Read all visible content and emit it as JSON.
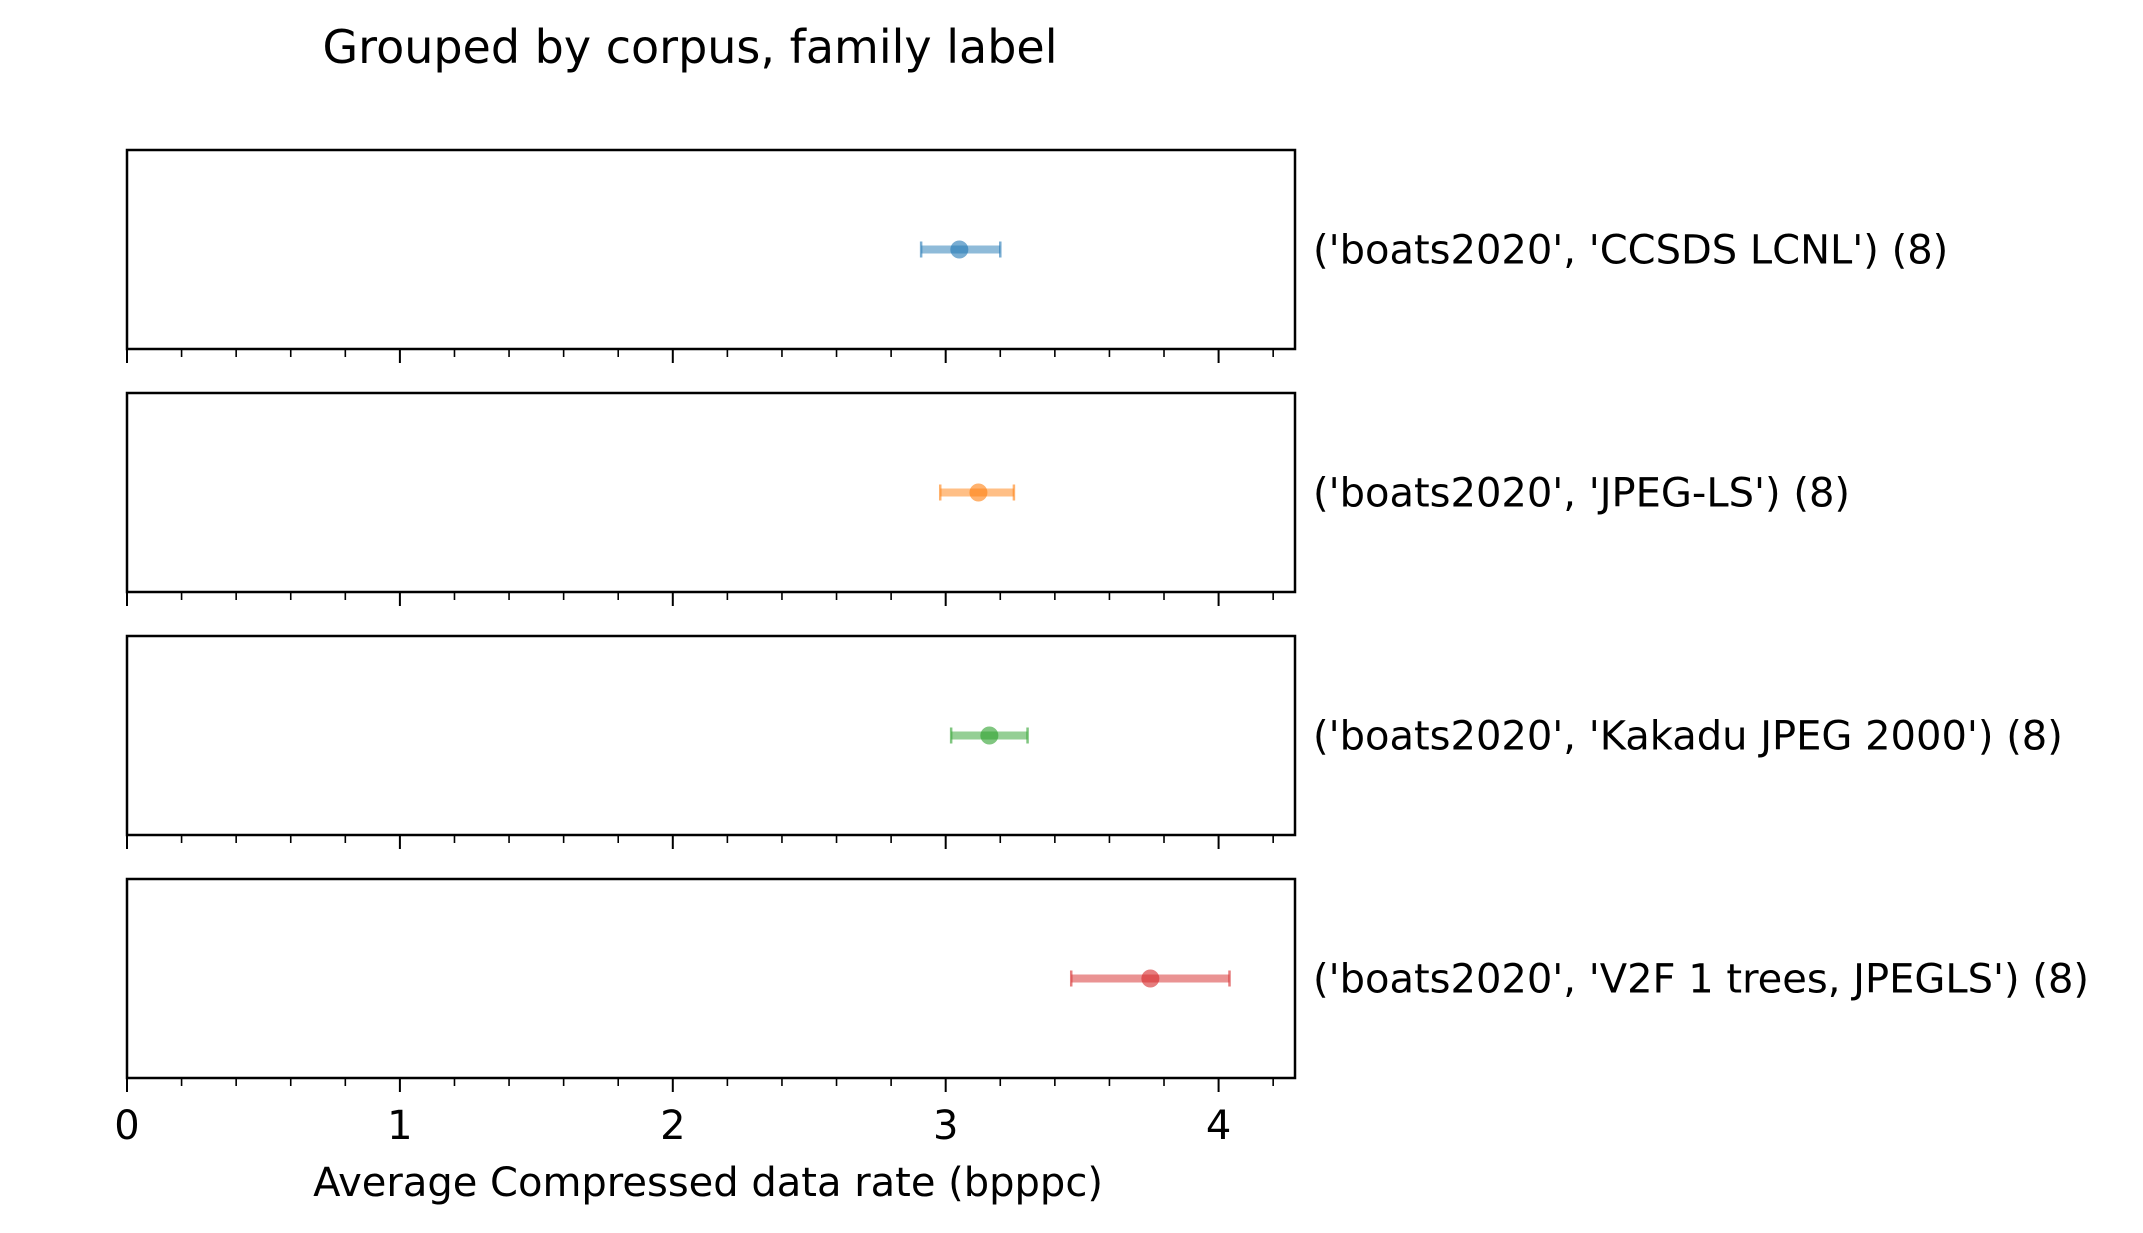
{
  "chart_data": {
    "type": "scatter",
    "title": "Grouped by corpus, family label",
    "xlabel": "Average Compressed data rate (bpppc)",
    "ylabel": "",
    "xlim": [
      0,
      4.28
    ],
    "xticks": [
      "0",
      "1",
      "2",
      "3",
      "4"
    ],
    "grid": false,
    "legend": "none",
    "series": [
      {
        "name": "('boats2020', 'CCSDS LCNL') (8)",
        "color": "#1f77b4",
        "x": 3.05,
        "err_low": 2.91,
        "err_high": 3.2
      },
      {
        "name": "('boats2020', 'JPEG-LS') (8)",
        "color": "#ff7f0e",
        "x": 3.12,
        "err_low": 2.98,
        "err_high": 3.25
      },
      {
        "name": "('boats2020', 'Kakadu JPEG 2000') (8)",
        "color": "#2ca02c",
        "x": 3.16,
        "err_low": 3.02,
        "err_high": 3.3
      },
      {
        "name": "('boats2020', 'V2F 1 trees, JPEGLS') (8)",
        "color": "#d62728",
        "x": 3.75,
        "err_low": 3.46,
        "err_high": 4.04
      }
    ]
  }
}
